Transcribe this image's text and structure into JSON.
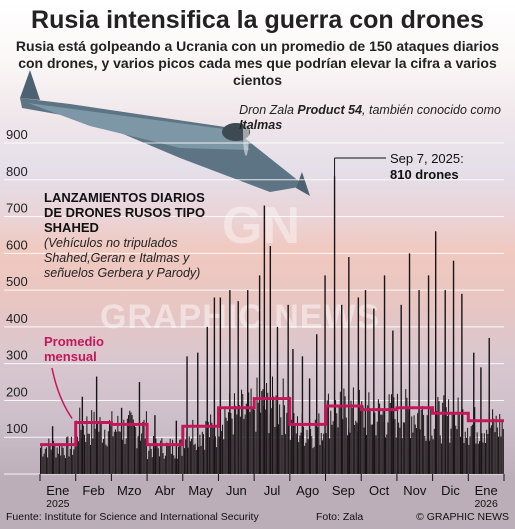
{
  "header": {
    "title": "Rusia intensifica la guerra con drones",
    "subtitle": "Rusia está golpeando a Ucrania con un promedio de 150 ataques diarios con drones, y varios picos cada mes que podrían elevar la cifra a varios cientos"
  },
  "drone": {
    "label_prefix": "Dron Zala ",
    "label_name": "Product 54",
    "label_mid": ", también conocido como ",
    "label_alias": "Italmas",
    "icon": "drone-photo-icon"
  },
  "annotation": {
    "date": "Sep 7, 2025:",
    "value": "810 drones"
  },
  "series_title": "LANZAMIENTOS DIARIOS DE DRONES RUSOS TIPO SHAHED",
  "series_note": "(Vehículos no tripulados Shahed,Geran e Italmas y señuelos Gerbera y Parody)",
  "average_label": "Promedio mensual",
  "watermark": "GRAPHIC NEWS",
  "watermark_logo": "GN",
  "footer": {
    "source": "Fuente: Institute for Science and International Security",
    "photo": "Foto: Zala",
    "credit": "© GRAPHIC NEWS"
  },
  "colors": {
    "bars": "#1a1416",
    "average_line": "#c2185b",
    "grid": "#ffffff",
    "text": "#222222"
  },
  "chart_data": {
    "type": "bar",
    "title": "LANZAMIENTOS DIARIOS DE DRONES RUSOS TIPO SHAHED",
    "ylim": [
      0,
      900
    ],
    "yticks": [
      0,
      100,
      200,
      300,
      400,
      500,
      600,
      700,
      800,
      900
    ],
    "ytick_labels": [
      "",
      "100",
      "200",
      "300",
      "400",
      "500",
      "600",
      "700",
      "800",
      "900"
    ],
    "grid": true,
    "months": [
      {
        "label": "Ene",
        "year": "2025",
        "monthly_average": 80
      },
      {
        "label": "Feb",
        "year": "",
        "monthly_average": 140
      },
      {
        "label": "Mzo",
        "year": "",
        "monthly_average": 135
      },
      {
        "label": "Abr",
        "year": "",
        "monthly_average": 80
      },
      {
        "label": "May",
        "year": "",
        "monthly_average": 130
      },
      {
        "label": "Jun",
        "year": "",
        "monthly_average": 180
      },
      {
        "label": "Jul",
        "year": "",
        "monthly_average": 205
      },
      {
        "label": "Ago",
        "year": "",
        "monthly_average": 135
      },
      {
        "label": "Sep",
        "year": "",
        "monthly_average": 185
      },
      {
        "label": "Oct",
        "year": "",
        "monthly_average": 175
      },
      {
        "label": "Nov",
        "year": "",
        "monthly_average": 180
      },
      {
        "label": "Dic",
        "year": "",
        "monthly_average": 165
      },
      {
        "label": "Ene",
        "year": "2026",
        "monthly_average": 145
      }
    ],
    "peaks": [
      {
        "month": 0,
        "day": 10,
        "value": 130
      },
      {
        "month": 1,
        "day": 5,
        "value": 210
      },
      {
        "month": 1,
        "day": 17,
        "value": 265
      },
      {
        "month": 2,
        "day": 8,
        "value": 180
      },
      {
        "month": 2,
        "day": 23,
        "value": 250
      },
      {
        "month": 3,
        "day": 6,
        "value": 160
      },
      {
        "month": 3,
        "day": 24,
        "value": 145
      },
      {
        "month": 4,
        "day": 3,
        "value": 320
      },
      {
        "month": 4,
        "day": 12,
        "value": 330
      },
      {
        "month": 4,
        "day": 20,
        "value": 400
      },
      {
        "month": 4,
        "day": 26,
        "value": 480
      },
      {
        "month": 5,
        "day": 1,
        "value": 480
      },
      {
        "month": 5,
        "day": 9,
        "value": 500
      },
      {
        "month": 5,
        "day": 16,
        "value": 470
      },
      {
        "month": 5,
        "day": 24,
        "value": 500
      },
      {
        "month": 6,
        "day": 4,
        "value": 540
      },
      {
        "month": 6,
        "day": 8,
        "value": 730
      },
      {
        "month": 6,
        "day": 13,
        "value": 620
      },
      {
        "month": 6,
        "day": 19,
        "value": 400
      },
      {
        "month": 6,
        "day": 28,
        "value": 460
      },
      {
        "month": 7,
        "day": 2,
        "value": 340
      },
      {
        "month": 7,
        "day": 10,
        "value": 320
      },
      {
        "month": 7,
        "day": 16,
        "value": 260
      },
      {
        "month": 7,
        "day": 22,
        "value": 380
      },
      {
        "month": 7,
        "day": 29,
        "value": 540
      },
      {
        "month": 8,
        "day": 7,
        "value": 810
      },
      {
        "month": 8,
        "day": 13,
        "value": 460
      },
      {
        "month": 8,
        "day": 19,
        "value": 590
      },
      {
        "month": 8,
        "day": 27,
        "value": 480
      },
      {
        "month": 9,
        "day": 3,
        "value": 500
      },
      {
        "month": 9,
        "day": 10,
        "value": 450
      },
      {
        "month": 9,
        "day": 19,
        "value": 540
      },
      {
        "month": 9,
        "day": 26,
        "value": 390
      },
      {
        "month": 10,
        "day": 3,
        "value": 460
      },
      {
        "month": 10,
        "day": 10,
        "value": 600
      },
      {
        "month": 10,
        "day": 18,
        "value": 500
      },
      {
        "month": 10,
        "day": 26,
        "value": 540
      },
      {
        "month": 11,
        "day": 2,
        "value": 660
      },
      {
        "month": 11,
        "day": 10,
        "value": 500
      },
      {
        "month": 11,
        "day": 17,
        "value": 580
      },
      {
        "month": 11,
        "day": 24,
        "value": 490
      },
      {
        "month": 12,
        "day": 4,
        "value": 330
      },
      {
        "month": 12,
        "day": 10,
        "value": 290
      },
      {
        "month": 12,
        "day": 17,
        "value": 370
      }
    ]
  }
}
